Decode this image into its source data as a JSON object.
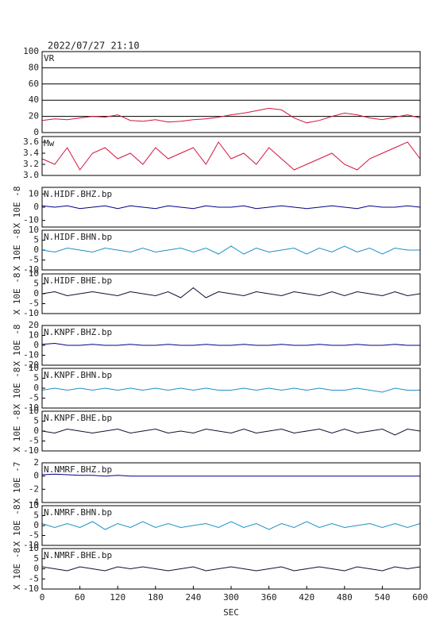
{
  "chart_data": {
    "type": "line",
    "title": "2022/07/27 21:10",
    "xlabel": "SEC",
    "x": [
      0,
      20,
      40,
      60,
      80,
      100,
      120,
      140,
      160,
      180,
      200,
      220,
      240,
      260,
      280,
      300,
      320,
      340,
      360,
      380,
      400,
      420,
      440,
      460,
      480,
      500,
      520,
      540,
      560,
      580,
      600
    ],
    "xlim": [
      0,
      600
    ],
    "xticks": [
      0,
      60,
      120,
      180,
      240,
      300,
      360,
      420,
      480,
      540,
      600
    ],
    "panels": [
      {
        "name": "VR",
        "color": "#d4143c",
        "ylim": [
          0,
          100
        ],
        "yticks": [
          0,
          20,
          40,
          60,
          80,
          100
        ],
        "grid": true,
        "values": [
          15,
          17,
          16,
          18,
          20,
          19,
          22,
          15,
          14,
          16,
          13,
          14,
          16,
          17,
          19,
          22,
          24,
          27,
          30,
          28,
          18,
          12,
          15,
          20,
          24,
          22,
          18,
          16,
          19,
          22,
          18
        ]
      },
      {
        "name": "Mw",
        "color": "#d4143c",
        "ylim": [
          3.0,
          3.7
        ],
        "yticks": [
          {
            "value": 3.0,
            "label": "3.0"
          },
          3.2,
          3.4,
          3.6
        ],
        "grid": false,
        "values": [
          3.3,
          3.2,
          3.5,
          3.1,
          3.4,
          3.5,
          3.3,
          3.4,
          3.2,
          3.5,
          3.3,
          3.4,
          3.5,
          3.2,
          3.6,
          3.3,
          3.4,
          3.2,
          3.5,
          3.3,
          3.1,
          3.2,
          3.3,
          3.4,
          3.2,
          3.1,
          3.3,
          3.4,
          3.5,
          3.6,
          3.3
        ]
      },
      {
        "name": "N.HIDF.BHZ.bp",
        "ylabel": "X 10E -8",
        "color": "#00008b",
        "ylim": [
          -15,
          15
        ],
        "yticks": [
          -10,
          0,
          10
        ],
        "grid": false,
        "values": [
          1,
          0,
          1,
          -1,
          0,
          1,
          -1,
          1,
          0,
          -1,
          1,
          0,
          -1,
          1,
          0,
          0,
          1,
          -1,
          0,
          1,
          0,
          -1,
          0,
          1,
          0,
          -1,
          1,
          0,
          0,
          1,
          0
        ]
      },
      {
        "name": "N.HIDF.BHN.bp",
        "ylabel": "X 10E -8",
        "color": "#1e90c8",
        "ylim": [
          -10,
          10
        ],
        "yticks": [
          -10,
          -5,
          0,
          5,
          10
        ],
        "grid": false,
        "values": [
          0,
          -1,
          1,
          0,
          -1,
          1,
          0,
          -1,
          1,
          -1,
          0,
          1,
          -1,
          1,
          -2,
          2,
          -2,
          1,
          -1,
          0,
          1,
          -2,
          1,
          -1,
          2,
          -1,
          1,
          -2,
          1,
          0,
          0
        ]
      },
      {
        "name": "N.HIDF.BHE.bp",
        "ylabel": "X 10E -8",
        "color": "#101030",
        "ylim": [
          -10,
          10
        ],
        "yticks": [
          -10,
          -5,
          0,
          5,
          10
        ],
        "grid": false,
        "values": [
          0,
          1,
          -1,
          0,
          1,
          0,
          -1,
          1,
          0,
          -1,
          1,
          -2,
          3,
          -2,
          1,
          0,
          -1,
          1,
          0,
          -1,
          1,
          0,
          -1,
          1,
          -1,
          1,
          0,
          -1,
          1,
          -1,
          0
        ]
      },
      {
        "name": "N.KNPF.BHZ.bp",
        "ylabel": "X 10E -8",
        "color": "#00008b",
        "ylim": [
          -20,
          20
        ],
        "yticks": [
          -20,
          -10,
          0,
          10,
          20
        ],
        "grid": false,
        "values": [
          1,
          2,
          0,
          0,
          1,
          0,
          0,
          1,
          0,
          0,
          1,
          0,
          0,
          1,
          0,
          0,
          1,
          0,
          0,
          1,
          0,
          0,
          1,
          0,
          0,
          1,
          0,
          0,
          1,
          0,
          0
        ]
      },
      {
        "name": "N.KNPF.BHN.bp",
        "ylabel": "X 10E -8",
        "color": "#1e90c8",
        "ylim": [
          -10,
          10
        ],
        "yticks": [
          -10,
          -5,
          0,
          5,
          10
        ],
        "grid": false,
        "values": [
          -1,
          0,
          -1,
          0,
          -1,
          0,
          -1,
          0,
          -1,
          0,
          -1,
          0,
          -1,
          0,
          -1,
          -1,
          0,
          -1,
          0,
          -1,
          0,
          -1,
          0,
          -1,
          -1,
          0,
          -1,
          -2,
          0,
          -1,
          -1
        ]
      },
      {
        "name": "N.KNPF.BHE.bp",
        "ylabel": "X 10E -8",
        "color": "#101030",
        "ylim": [
          -10,
          10
        ],
        "yticks": [
          -10,
          -5,
          0,
          5,
          10
        ],
        "grid": false,
        "values": [
          0,
          -1,
          1,
          0,
          -1,
          0,
          1,
          -1,
          0,
          1,
          -1,
          0,
          -1,
          1,
          0,
          -1,
          1,
          -1,
          0,
          1,
          -1,
          0,
          1,
          -1,
          1,
          -1,
          0,
          1,
          -2,
          1,
          0
        ]
      },
      {
        "name": "N.NMRF.BHZ.bp",
        "ylabel": "X 10E -7",
        "color": "#00008b",
        "ylim": [
          -4,
          2
        ],
        "yticks": [
          -4,
          -2,
          0,
          2
        ],
        "grid": false,
        "values": [
          0.2,
          0.3,
          0.2,
          0.1,
          0.1,
          0,
          0.1,
          0,
          0,
          0,
          0,
          0,
          0,
          0,
          0,
          0,
          0,
          0,
          0,
          0,
          0,
          0,
          0,
          0,
          0,
          0,
          0,
          0,
          0,
          0,
          0
        ]
      },
      {
        "name": "N.NMRF.BHN.bp",
        "ylabel": "X 10E -8",
        "color": "#1e90c8",
        "ylim": [
          -10,
          10
        ],
        "yticks": [
          -10,
          -5,
          0,
          5,
          10
        ],
        "grid": false,
        "values": [
          1,
          -1,
          1,
          -1,
          2,
          -2,
          1,
          -1,
          2,
          -1,
          1,
          -1,
          0,
          1,
          -1,
          2,
          -1,
          1,
          -2,
          1,
          -1,
          2,
          -1,
          1,
          -1,
          0,
          1,
          -1,
          1,
          -1,
          1
        ]
      },
      {
        "name": "N.NMRF.BHE.bp",
        "ylabel": "X 10E -8",
        "color": "#101030",
        "ylim": [
          -10,
          10
        ],
        "yticks": [
          -10,
          -5,
          0,
          5,
          10
        ],
        "grid": false,
        "values": [
          1,
          0,
          -1,
          1,
          0,
          -1,
          1,
          0,
          1,
          0,
          -1,
          0,
          1,
          -1,
          0,
          1,
          0,
          -1,
          0,
          1,
          -1,
          0,
          1,
          0,
          -1,
          1,
          0,
          -1,
          1,
          0,
          1
        ]
      }
    ]
  }
}
